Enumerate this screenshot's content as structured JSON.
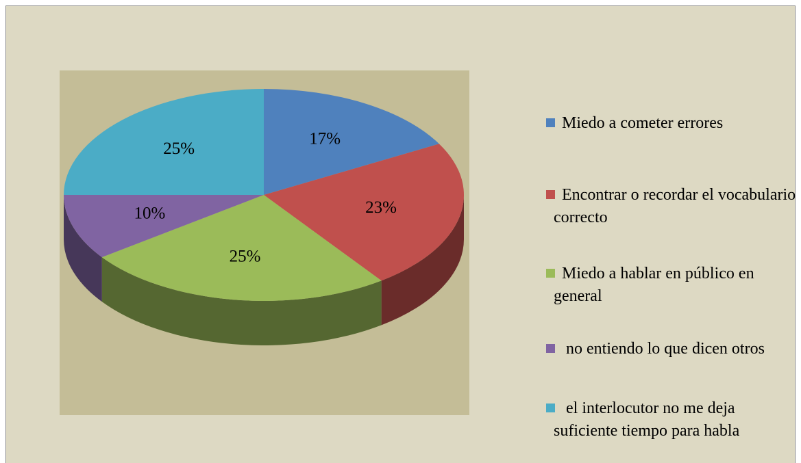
{
  "chart_data": {
    "type": "pie",
    "categories": [
      "Miedo a cometer errores",
      "Encontrar o recordar el vocabulario correcto",
      "Miedo a hablar en público en general",
      "no entiendo lo que dicen otros",
      "el interlocutor no me deja suficiente tiempo para habla"
    ],
    "values": [
      17,
      23,
      25,
      10,
      25
    ],
    "value_labels": [
      "17%",
      "23%",
      "25%",
      "10%",
      "25%"
    ],
    "colors": [
      "#4f81bd",
      "#c0504d",
      "#9bbb59",
      "#8064a2",
      "#4bacc6"
    ],
    "legend": "right"
  }
}
